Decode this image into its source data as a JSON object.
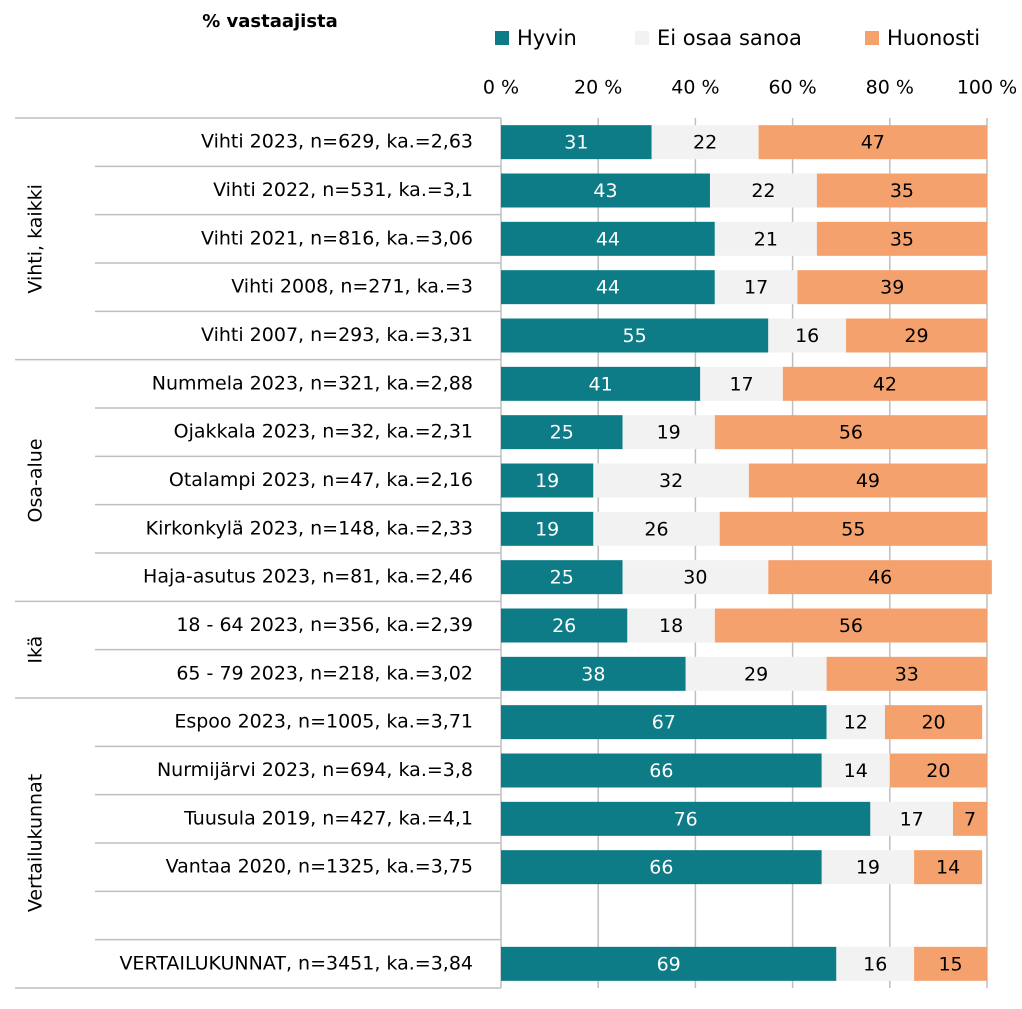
{
  "chart_data": {
    "type": "stacked_barh",
    "subtitle": "% vastaajista",
    "categories": [
      "Vihti 2023, n=629, ka.=2,63",
      "Vihti 2022, n=531, ka.=3,1",
      "Vihti 2021, n=816, ka.=3,06",
      "Vihti 2008, n=271, ka.=3",
      "Vihti 2007, n=293, ka.=3,31",
      "Nummela 2023, n=321, ka.=2,88",
      "Ojakkala 2023, n=32, ka.=2,31",
      "Otalampi 2023, n=47, ka.=2,16",
      "Kirkonkylä 2023, n=148, ka.=2,33",
      "Haja-asutus 2023, n=81, ka.=2,46",
      "18 - 64 2023, n=356, ka.=2,39",
      "65 - 79 2023, n=218, ka.=3,02",
      "Espoo 2023, n=1005, ka.=3,71",
      "Nurmijärvi 2023, n=694, ka.=3,8",
      "Tuusula 2019, n=427, ka.=4,1",
      "Vantaa 2020, n=1325, ka.=3,75",
      null,
      "VERTAILUKUNNAT, n=3451, ka.=3,84"
    ],
    "groups": [
      {
        "name": "Vihti, kaikki",
        "start": 0,
        "end": 4
      },
      {
        "name": "Osa-alue",
        "start": 5,
        "end": 9
      },
      {
        "name": "Ikä",
        "start": 10,
        "end": 11
      },
      {
        "name": "Vertailukunnat",
        "start": 12,
        "end": 17
      }
    ],
    "series": [
      {
        "name": "Hyvin",
        "color": "#0e7c86",
        "label_color": "#ffffff",
        "values": [
          31,
          43,
          44,
          44,
          55,
          41,
          25,
          19,
          19,
          25,
          26,
          38,
          67,
          66,
          76,
          66,
          null,
          69
        ]
      },
      {
        "name": "Ei osaa sanoa",
        "color": "#f2f2f2",
        "label_color": "#000000",
        "values": [
          22,
          22,
          21,
          17,
          16,
          17,
          19,
          32,
          26,
          30,
          18,
          29,
          12,
          14,
          17,
          19,
          null,
          16
        ]
      },
      {
        "name": "Huonosti",
        "color": "#f4a16e",
        "label_color": "#000000",
        "values": [
          47,
          35,
          35,
          39,
          29,
          42,
          56,
          49,
          55,
          46,
          56,
          33,
          20,
          20,
          7,
          14,
          null,
          15
        ]
      }
    ],
    "xlim": [
      0,
      100
    ],
    "xticks": [
      {
        "value": 0,
        "label": "0 %"
      },
      {
        "value": 20,
        "label": "20 %"
      },
      {
        "value": 40,
        "label": "40 %"
      },
      {
        "value": 60,
        "label": "60 %"
      },
      {
        "value": 80,
        "label": "80 %"
      },
      {
        "value": 100,
        "label": "100 %"
      }
    ],
    "grid": true,
    "legend": "top"
  }
}
